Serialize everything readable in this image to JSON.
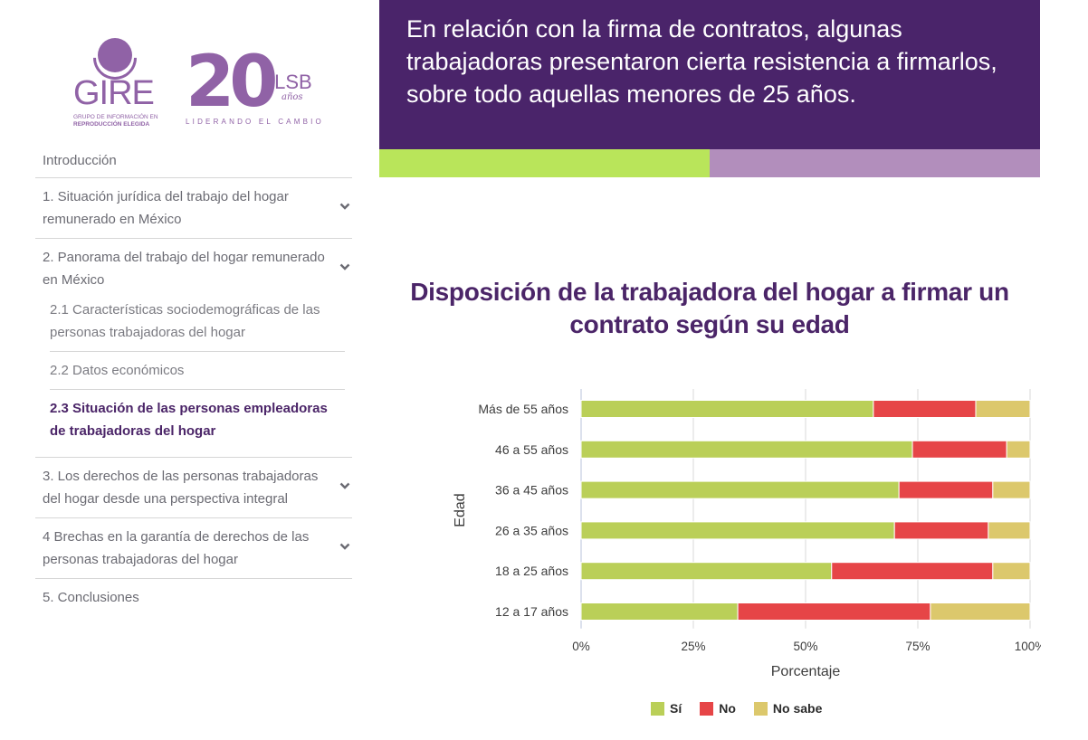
{
  "logos": {
    "gire": {
      "word": "GIRE",
      "line1": "GRUPO DE INFORMACIÓN EN",
      "line2": "REPRODUCCIÓN ELEGIDA"
    },
    "ilsb": {
      "number": "20",
      "word": "ILSB",
      "anos": "años",
      "tagline": "LIDERANDO EL CAMBIO"
    }
  },
  "nav": {
    "items": [
      {
        "label": "Introducción",
        "expandable": false
      },
      {
        "label": "1. Situación jurídica del trabajo del hogar remunerado en México",
        "expandable": true
      },
      {
        "label": "2. Panorama del trabajo del hogar remunerado en México",
        "expandable": true,
        "subitems": [
          {
            "label": "2.1 Características sociodemográficas de las personas trabajadoras del hogar",
            "active": false
          },
          {
            "label": "2.2 Datos económicos",
            "active": false
          },
          {
            "label": "2.3 Situación de las personas empleadoras de trabajadoras del hogar",
            "active": true
          }
        ]
      },
      {
        "label": "3. Los derechos de las personas trabajadoras del hogar desde una perspectiva integral",
        "expandable": true
      },
      {
        "label": "4 Brechas en la garantía de derechos de las personas trabajadoras del hogar",
        "expandable": true
      },
      {
        "label": "5. Conclusiones",
        "expandable": false
      }
    ]
  },
  "banner": {
    "text": "En relación con la firma de contratos, algunas trabajadoras presentaron cierta resistencia a firmarlos, sobre todo aquellas menores de 25 años.",
    "colors": {
      "background": "#4a246a",
      "stripe_left": "#b9e55a",
      "stripe_right": "#b28ebc"
    }
  },
  "chart_data": {
    "type": "bar",
    "orientation": "horizontal",
    "stacked": true,
    "title": "Disposición de la trabajadora del hogar a firmar un contrato según su edad",
    "xlabel": "Porcentaje",
    "ylabel": "Edad",
    "xlim": [
      0,
      100
    ],
    "xticks": [
      "0%",
      "25%",
      "50%",
      "75%",
      "100%"
    ],
    "xtick_values": [
      0,
      25,
      50,
      75,
      100
    ],
    "grid": true,
    "legend_position": "bottom",
    "categories": [
      "Más de 55 años",
      "46 a 55 años",
      "36 a 45 años",
      "26 a 35 años",
      "18 a 25 años",
      "12 a 17 años"
    ],
    "series": [
      {
        "name": "Sí",
        "color": "#bacf58",
        "values": [
          65.1,
          73.8,
          70.8,
          69.8,
          55.8,
          34.9
        ]
      },
      {
        "name": "No",
        "color": "#e64547",
        "values": [
          22.8,
          21.0,
          20.9,
          20.9,
          35.9,
          42.9
        ]
      },
      {
        "name": "No sabe",
        "color": "#dcc86c",
        "values": [
          12.1,
          5.2,
          8.3,
          9.3,
          8.3,
          22.2
        ]
      }
    ]
  }
}
